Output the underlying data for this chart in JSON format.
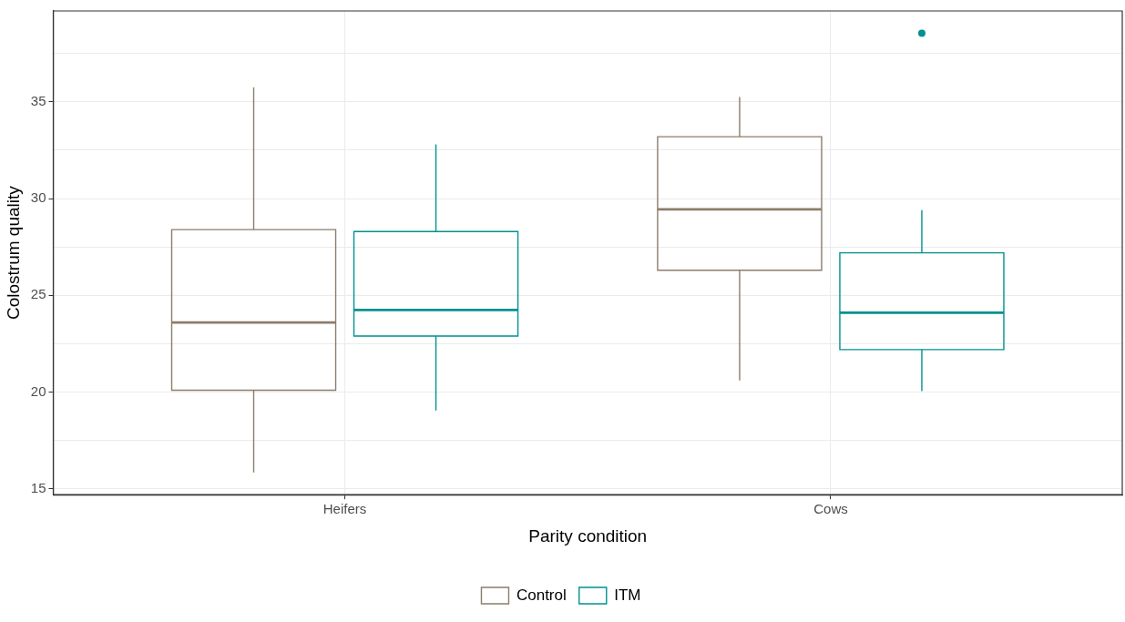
{
  "chart_data": {
    "type": "box",
    "xlabel": "Parity condition",
    "ylabel": "Colostrum quality",
    "categories": [
      "Heifers",
      "Cows"
    ],
    "ylim": [
      14.7,
      39.7
    ],
    "yticks": [
      15,
      {
        "value": 17.5,
        "label": null
      },
      20,
      {
        "value": 22.5,
        "label": null
      },
      25,
      {
        "value": 27.5,
        "label": null
      },
      30,
      {
        "value": 32.5,
        "label": null
      },
      35,
      {
        "value": 37.5,
        "label": null
      }
    ],
    "grid": true,
    "legend": "bottom",
    "series": [
      {
        "name": "Control",
        "color": "#8b7d6b",
        "boxes": [
          {
            "low": 15.85,
            "q1": 20.1,
            "median": 23.6,
            "q3": 28.4,
            "high": 35.75
          },
          {
            "low": 20.6,
            "q1": 26.3,
            "median": 29.45,
            "q3": 33.2,
            "high": 35.25
          }
        ]
      },
      {
        "name": "ITM",
        "color": "#009090",
        "boxes": [
          {
            "low": 19.05,
            "q1": 22.9,
            "median": 24.25,
            "q3": 28.3,
            "high": 32.8
          },
          {
            "low": 20.05,
            "q1": 22.2,
            "median": 24.1,
            "q3": 27.2,
            "high": 29.4,
            "outliers": [
              38.55
            ]
          }
        ]
      }
    ]
  }
}
